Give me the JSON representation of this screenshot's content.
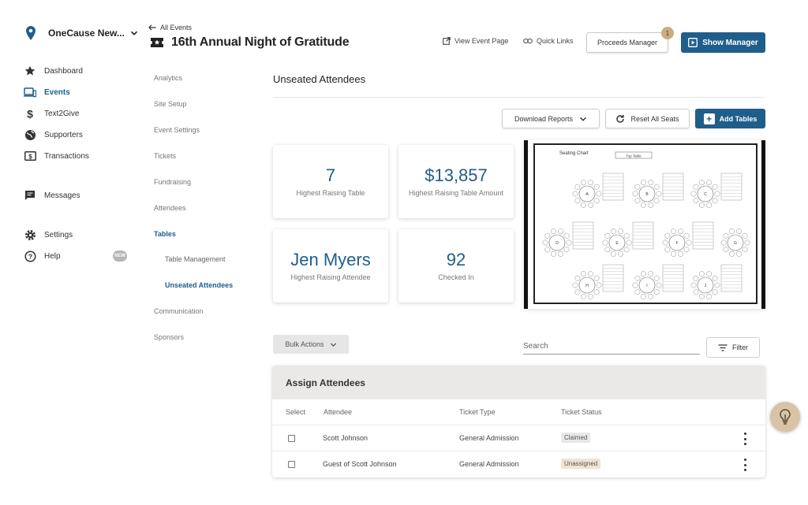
{
  "org": {
    "name": "OneCause New...",
    "icon": "location-pin-icon"
  },
  "sidebar": {
    "items": [
      {
        "label": "Dashboard",
        "icon": "star-icon"
      },
      {
        "label": "Events",
        "icon": "devices-icon"
      },
      {
        "label": "Text2Give",
        "icon": "dollar-icon"
      },
      {
        "label": "Supporters",
        "icon": "globe-icon"
      },
      {
        "label": "Transactions",
        "icon": "money-icon"
      },
      {
        "label": "Messages",
        "icon": "chat-icon"
      },
      {
        "label": "Settings",
        "icon": "gear-icon"
      },
      {
        "label": "Help",
        "icon": "question-icon"
      }
    ],
    "new_badge": "NEW"
  },
  "header": {
    "back_label": "All Events",
    "title": "16th Annual Night of Gratitude",
    "view_event_page": "View Event Page",
    "quick_links": "Quick Links",
    "proceeds_manager": "Proceeds Manager",
    "proceeds_badge": "1",
    "show_manager": "Show Manager"
  },
  "subnav": {
    "items": [
      "Analytics",
      "Site Setup",
      "Event Settings",
      "Tickets",
      "Fundraising",
      "Attendees",
      "Tables",
      "Communication",
      "Sponsors"
    ],
    "children": [
      "Table Management",
      "Unseated Attendees"
    ]
  },
  "main": {
    "section_title": "Unseated Attendees",
    "download_reports": "Download Reports",
    "reset_all_seats": "Reset All Seats",
    "add_tables": "Add Tables",
    "stats": [
      {
        "value": "7",
        "label": "Highest Raising Table"
      },
      {
        "value": "$13,857",
        "label": "Highest Raising Table Amount"
      },
      {
        "value": "Jen Myers",
        "label": "Highest Raising Attendee"
      },
      {
        "value": "92",
        "label": "Checked In"
      }
    ],
    "seating_chart": {
      "title": "Seating Chart",
      "top_table": "Top Table",
      "tables": [
        "A",
        "B",
        "C",
        "D",
        "E",
        "F",
        "G",
        "H",
        "I",
        "J"
      ]
    },
    "bulk_actions": "Bulk Actions",
    "search_placeholder": "Search",
    "filter": "Filter"
  },
  "assign": {
    "title": "Assign Attendees",
    "columns": [
      "Select",
      "Attendee",
      "Ticket Type",
      "Ticket Status"
    ],
    "rows": [
      {
        "attendee": "Scott Johnson",
        "ticket_type": "General Admission",
        "status": "Claimed"
      },
      {
        "attendee": "Guest of Scott Johnson",
        "ticket_type": "General Admission",
        "status": "Unassigned"
      }
    ]
  },
  "colors": {
    "primary": "#1f5e8a",
    "badge_gold": "#c9ad82",
    "help_fab": "#d7c4a6"
  }
}
